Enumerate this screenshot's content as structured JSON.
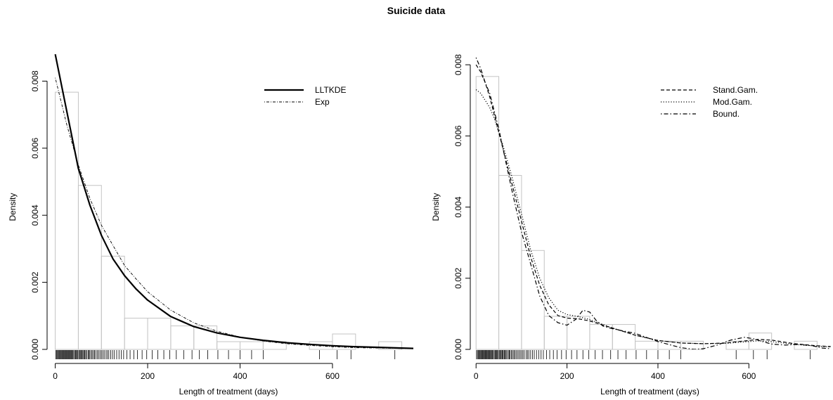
{
  "chart_data": {
    "title": "Suicide data",
    "panels": [
      {
        "type": "histogram-density",
        "xlabel": "Length of treatment (days)",
        "ylabel": "Density",
        "xlim": [
          -10,
          775
        ],
        "ylim": [
          0,
          0.0087
        ],
        "xticks": [
          0,
          200,
          400,
          600
        ],
        "yticks": [
          0.0,
          0.002,
          0.004,
          0.006,
          0.008
        ],
        "ytick_labels": [
          "0.000",
          "0.002",
          "0.004",
          "0.006",
          "0.008"
        ],
        "legend_position": "top-right",
        "histogram": {
          "bin_edges": [
            0,
            50,
            100,
            150,
            200,
            250,
            300,
            350,
            400,
            450,
            500,
            550,
            600,
            650,
            700,
            750
          ],
          "densities": [
            0.00767,
            0.00489,
            0.00278,
            0.00093,
            0.00093,
            0.0007,
            0.0007,
            0.00023,
            0.00023,
            0.00023,
            0.0,
            0.00023,
            0.00046,
            0.0,
            0.00023
          ]
        },
        "series": [
          {
            "name": "LLTKDE",
            "style": "solid-thick",
            "x": [
              0,
              25,
              50,
              75,
              100,
              125,
              150,
              175,
              200,
              250,
              300,
              350,
              400,
              450,
              500,
              550,
              600,
              650,
              700,
              775
            ],
            "y": [
              0.0088,
              0.0071,
              0.0054,
              0.0043,
              0.0034,
              0.0027,
              0.0022,
              0.0018,
              0.00147,
              0.00098,
              0.00068,
              0.00049,
              0.00036,
              0.00027,
              0.0002,
              0.00015,
              0.00011,
              8e-05,
              6e-05,
              3e-05
            ]
          },
          {
            "name": "Exp",
            "style": "dot-dash-thin",
            "x": [
              0,
              25,
              50,
              75,
              100,
              125,
              150,
              175,
              200,
              250,
              300,
              350,
              400,
              450,
              500,
              550,
              600,
              650,
              700,
              775
            ],
            "y": [
              0.0081,
              0.0067,
              0.0055,
              0.0045,
              0.0037,
              0.0031,
              0.0025,
              0.0021,
              0.00172,
              0.00117,
              0.00079,
              0.00054,
              0.00037,
              0.00025,
              0.00017,
              0.00012,
              8e-05,
              5e-05,
              4e-05,
              2e-05
            ]
          }
        ]
      },
      {
        "type": "histogram-density",
        "xlabel": "Length of treatment (days)",
        "ylabel": "Density",
        "xlim": [
          -5,
          785
        ],
        "ylim": [
          0,
          0.0082
        ],
        "xticks": [
          0,
          200,
          400,
          600
        ],
        "yticks": [
          0.0,
          0.002,
          0.004,
          0.006,
          0.008
        ],
        "ytick_labels": [
          "0.000",
          "0.002",
          "0.004",
          "0.006",
          "0.008"
        ],
        "legend_position": "top-right",
        "histogram": {
          "bin_edges": [
            0,
            50,
            100,
            150,
            200,
            250,
            300,
            350,
            400,
            450,
            500,
            550,
            600,
            650,
            700,
            750
          ],
          "densities": [
            0.00767,
            0.00489,
            0.00278,
            0.00093,
            0.00093,
            0.0007,
            0.0007,
            0.00023,
            0.00023,
            0.00023,
            0.0,
            0.00023,
            0.00046,
            0.0,
            0.00023
          ]
        },
        "series": [
          {
            "name": "Stand.Gam.",
            "style": "dashed",
            "x": [
              0,
              10,
              20,
              30,
              40,
              50,
              60,
              80,
              100,
              120,
              140,
              160,
              180,
              200,
              225,
              250,
              275,
              300,
              350,
              400,
              450,
              500,
              550,
              600,
              620,
              650,
              700,
              750,
              780
            ],
            "y": [
              0.008,
              0.0078,
              0.0075,
              0.0071,
              0.0066,
              0.0061,
              0.0056,
              0.0046,
              0.0036,
              0.0026,
              0.0018,
              0.00125,
              0.00095,
              0.00088,
              0.00086,
              0.0008,
              0.0007,
              0.0006,
              0.0004,
              0.00025,
              0.00018,
              0.00016,
              0.00018,
              0.00025,
              0.00028,
              0.00026,
              0.00016,
              0.0001,
              8e-05
            ]
          },
          {
            "name": "Mod.Gam.",
            "style": "dotted",
            "x": [
              0,
              10,
              20,
              30,
              40,
              50,
              60,
              80,
              100,
              120,
              140,
              160,
              180,
              200,
              225,
              250,
              275,
              300,
              350,
              400,
              450,
              500,
              550,
              600,
              620,
              650,
              700,
              750,
              780
            ],
            "y": [
              0.0073,
              0.0072,
              0.007,
              0.0068,
              0.0065,
              0.0061,
              0.0057,
              0.0048,
              0.0038,
              0.0028,
              0.002,
              0.00145,
              0.0011,
              0.00098,
              0.00092,
              0.00084,
              0.00072,
              0.0006,
              0.0004,
              0.00025,
              0.00018,
              0.00016,
              0.00017,
              0.00022,
              0.00024,
              0.00022,
              0.00014,
              9e-05,
              7e-05
            ]
          },
          {
            "name": "Bound.",
            "style": "dot-dash",
            "x": [
              0,
              10,
              20,
              30,
              40,
              50,
              60,
              80,
              100,
              120,
              140,
              160,
              180,
              200,
              220,
              235,
              250,
              265,
              280,
              300,
              350,
              400,
              450,
              480,
              500,
              530,
              560,
              590,
              610,
              630,
              650,
              680,
              710,
              740,
              760,
              780
            ],
            "y": [
              0.0082,
              0.0079,
              0.0075,
              0.0072,
              0.0067,
              0.0062,
              0.0056,
              0.0044,
              0.0033,
              0.0024,
              0.0015,
              0.00095,
              0.00075,
              0.00068,
              0.00085,
              0.0011,
              0.00105,
              0.0008,
              0.00065,
              0.00058,
              0.00045,
              0.00022,
              5e-05,
              0.0,
              2e-05,
              0.00012,
              0.00026,
              0.00034,
              0.0003,
              0.00022,
              0.00015,
              0.00012,
              0.00014,
              0.0001,
              4e-05,
              2e-05
            ]
          }
        ]
      }
    ],
    "rug": [
      1,
      3,
      5,
      6,
      8,
      9,
      11,
      12,
      14,
      15,
      17,
      18,
      20,
      21,
      23,
      24,
      26,
      27,
      29,
      30,
      32,
      33,
      35,
      36,
      38,
      40,
      42,
      44,
      45,
      47,
      49,
      51,
      53,
      55,
      57,
      58,
      60,
      62,
      64,
      66,
      68,
      71,
      73,
      75,
      78,
      80,
      83,
      85,
      88,
      91,
      94,
      97,
      100,
      103,
      106,
      110,
      113,
      116,
      120,
      124,
      128,
      133,
      138,
      143,
      148,
      155,
      162,
      170,
      178,
      188,
      198,
      210,
      222,
      235,
      248,
      262,
      278,
      296,
      312,
      330,
      352,
      375,
      400,
      425,
      450,
      572,
      610,
      640,
      735
    ]
  }
}
